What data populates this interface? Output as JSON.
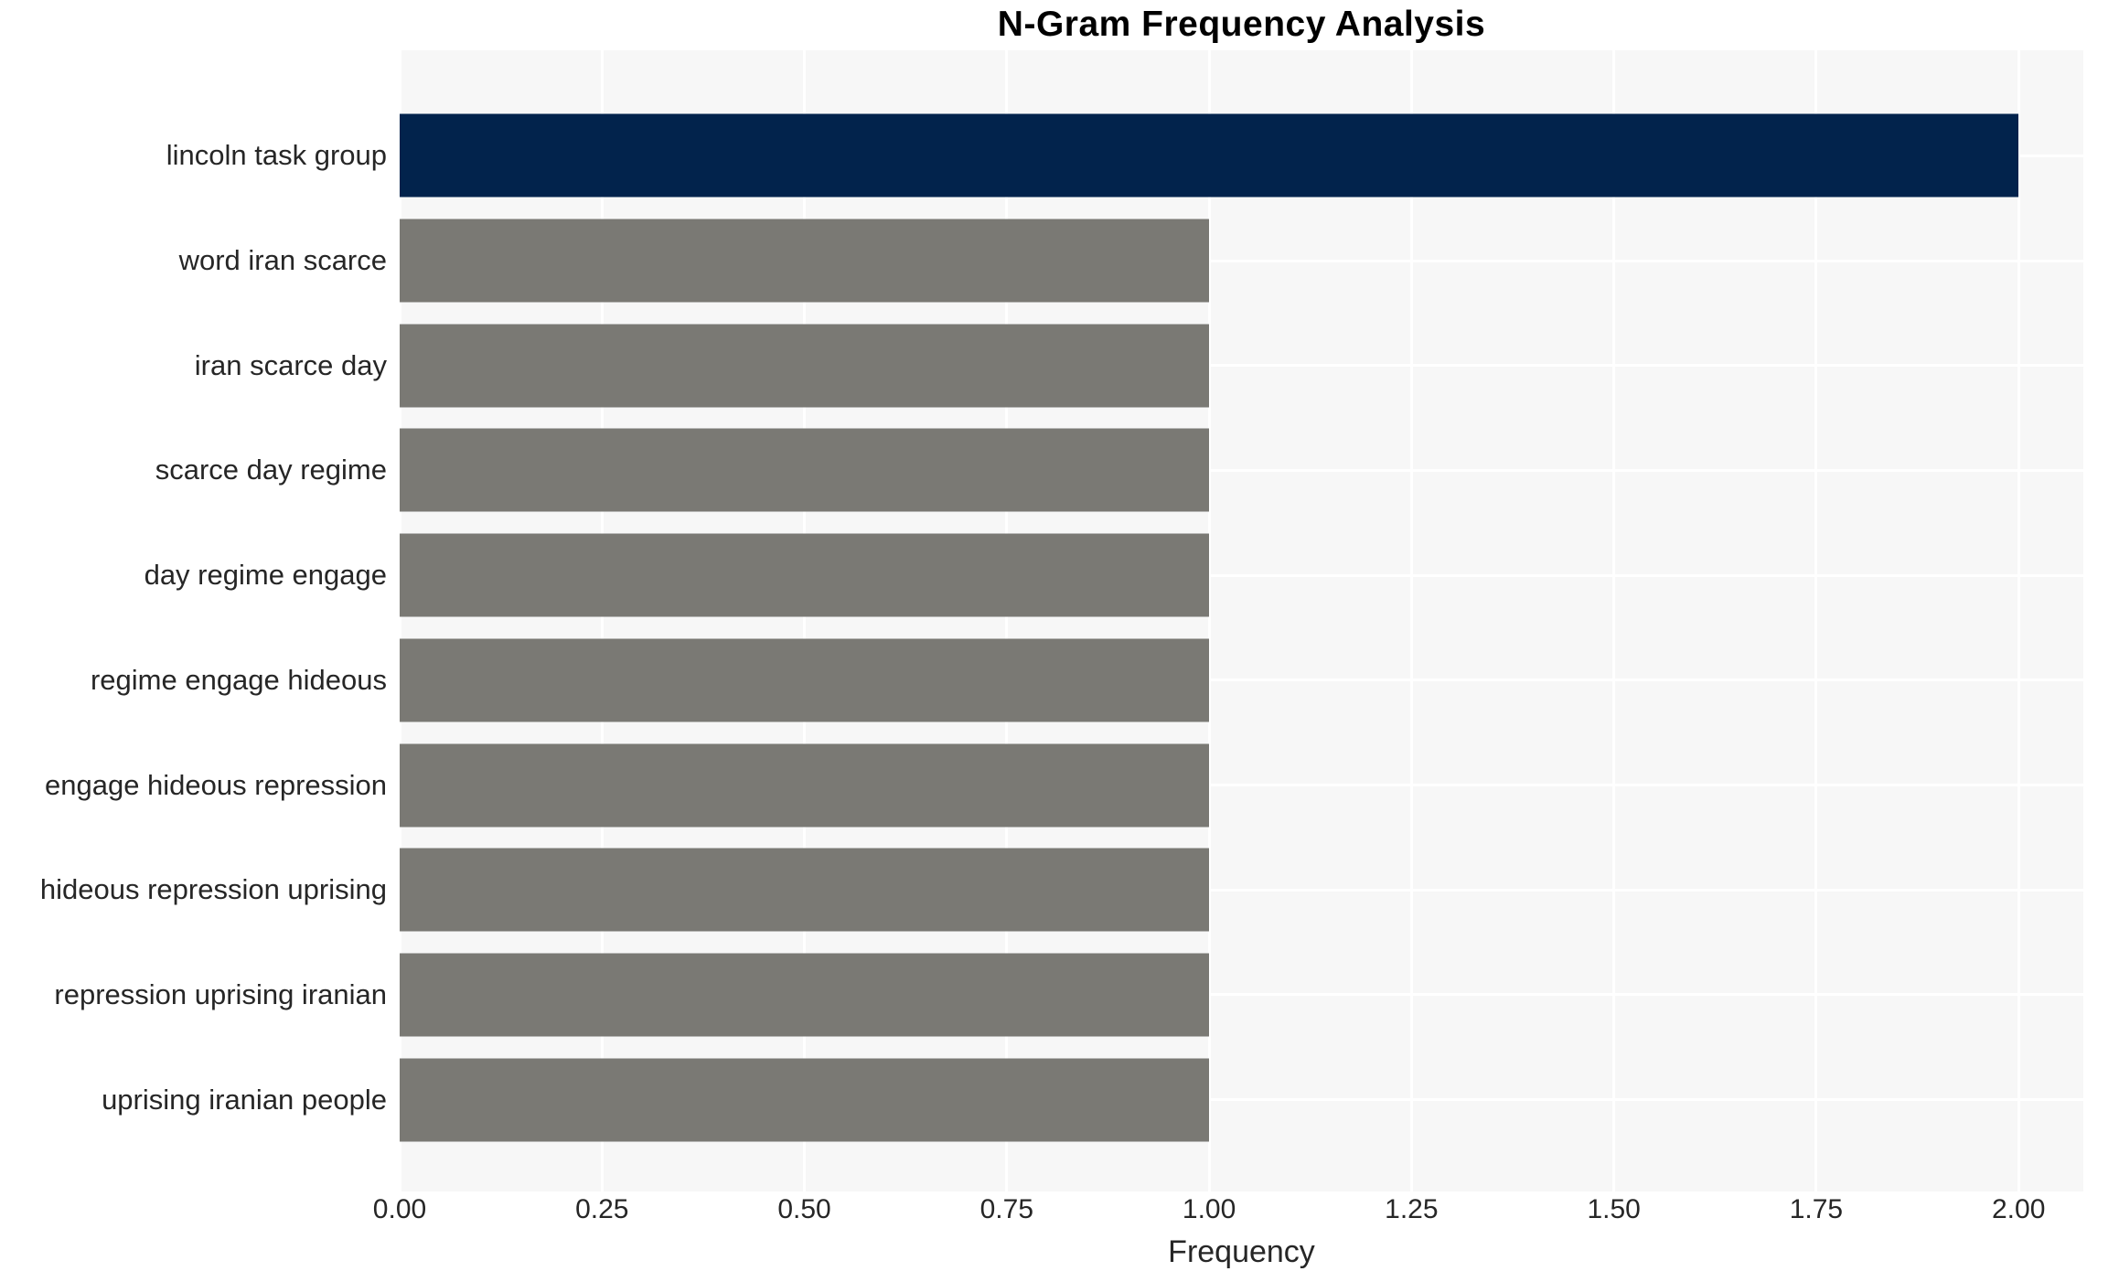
{
  "chart_data": {
    "type": "bar",
    "orientation": "horizontal",
    "title": "N-Gram Frequency Analysis",
    "xlabel": "Frequency",
    "ylabel": "",
    "categories": [
      "lincoln task group",
      "word iran scarce",
      "iran scarce day",
      "scarce day regime",
      "day regime engage",
      "regime engage hideous",
      "engage hideous repression",
      "hideous repression uprising",
      "repression uprising iranian",
      "uprising iranian people"
    ],
    "values": [
      2,
      1,
      1,
      1,
      1,
      1,
      1,
      1,
      1,
      1
    ],
    "xlim": [
      0,
      2.08
    ],
    "xticks": [
      0,
      0.25,
      0.5,
      0.75,
      1.0,
      1.25,
      1.5,
      1.75,
      2.0
    ],
    "xtick_labels": [
      "0.00",
      "0.25",
      "0.50",
      "0.75",
      "1.00",
      "1.25",
      "1.50",
      "1.75",
      "2.00"
    ],
    "grid": true,
    "legend": false,
    "colors": {
      "highlight_bar": "#02234c",
      "default_bar": "#7a7974",
      "plot_bg": "#f7f7f7",
      "grid_line": "#ffffff",
      "text": "#262626",
      "title": "#000000"
    }
  }
}
